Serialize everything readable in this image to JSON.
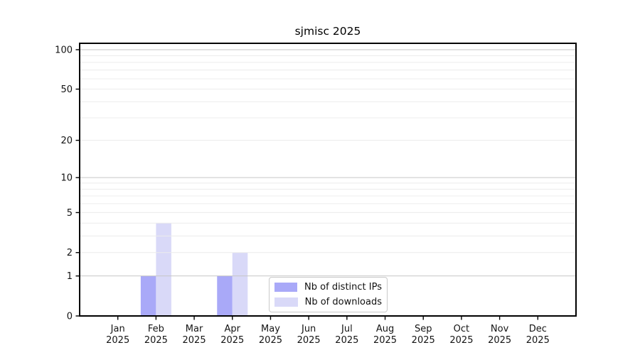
{
  "chart_data": {
    "type": "bar",
    "title": "sjmisc 2025",
    "categories": [
      {
        "month": "Jan",
        "year": "2025"
      },
      {
        "month": "Feb",
        "year": "2025"
      },
      {
        "month": "Mar",
        "year": "2025"
      },
      {
        "month": "Apr",
        "year": "2025"
      },
      {
        "month": "May",
        "year": "2025"
      },
      {
        "month": "Jun",
        "year": "2025"
      },
      {
        "month": "Jul",
        "year": "2025"
      },
      {
        "month": "Aug",
        "year": "2025"
      },
      {
        "month": "Sep",
        "year": "2025"
      },
      {
        "month": "Oct",
        "year": "2025"
      },
      {
        "month": "Nov",
        "year": "2025"
      },
      {
        "month": "Dec",
        "year": "2025"
      }
    ],
    "series": [
      {
        "name": "Nb of distinct IPs",
        "color": "#a9a9f8",
        "values": [
          0,
          1,
          0,
          1,
          0,
          0,
          0,
          0,
          0,
          0,
          0,
          0
        ]
      },
      {
        "name": "Nb of downloads",
        "color": "#d9d9f8",
        "values": [
          0,
          4,
          0,
          2,
          0,
          0,
          0,
          0,
          0,
          0,
          0,
          0
        ]
      }
    ],
    "y_axis": {
      "scale": "log10(value+1)",
      "ticks": [
        0,
        1,
        2,
        5,
        10,
        20,
        50,
        100
      ],
      "minor_gridlines": [
        2,
        3,
        4,
        5,
        6,
        7,
        8,
        9,
        20,
        30,
        40,
        50,
        60,
        70,
        80,
        90
      ],
      "major_gridlines": [
        1,
        10,
        100
      ],
      "range": [
        0,
        112
      ]
    },
    "legend_position": "bottom-center",
    "grid_over_bars": true,
    "colors": {
      "minor_grid": "#ececec",
      "major_grid": "#c6c6c6",
      "axis": "#000000",
      "tick_text": "#141414",
      "background": "#ffffff"
    }
  }
}
